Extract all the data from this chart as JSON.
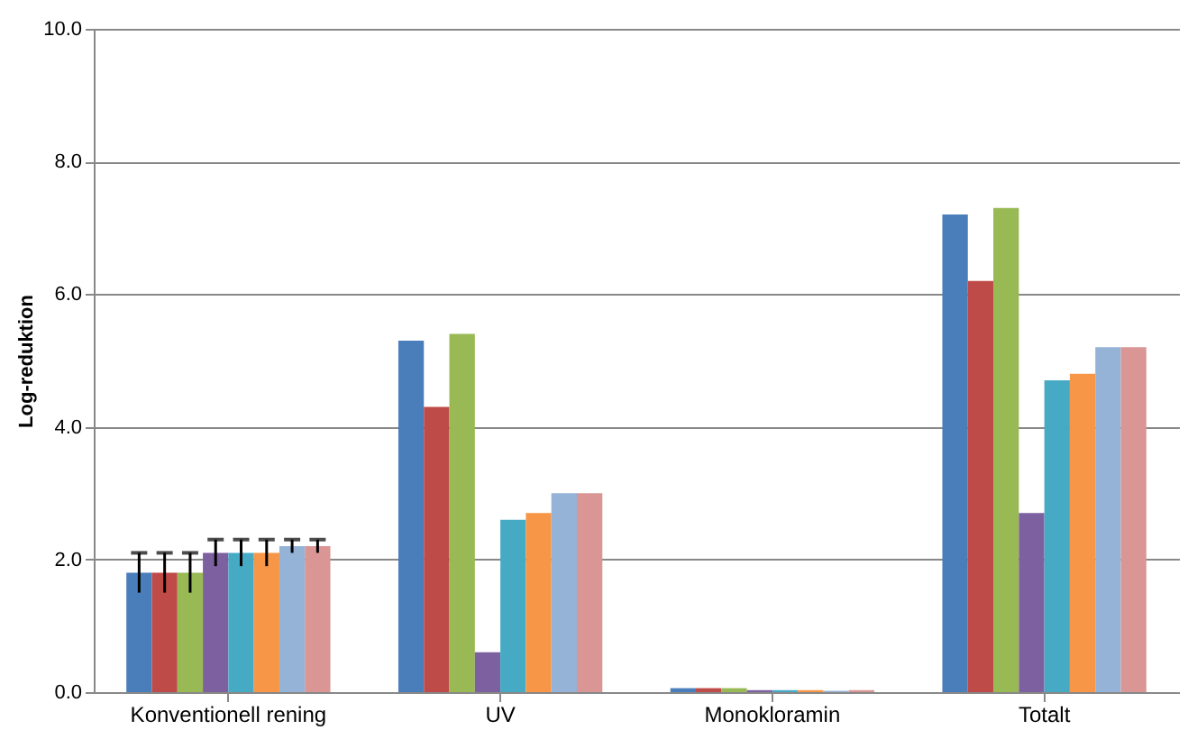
{
  "chart_data": {
    "type": "bar",
    "ylabel": "Log-reduktion",
    "categories": [
      "Konventionell rening",
      "UV",
      "Monokloramin",
      "Totalt"
    ],
    "series": [
      {
        "color": "#4a7ebb",
        "values": [
          1.8,
          5.3,
          0.06,
          7.2
        ],
        "errors": [
          0.3,
          null,
          null,
          null
        ]
      },
      {
        "color": "#be4b48",
        "values": [
          1.8,
          4.3,
          0.06,
          6.2
        ],
        "errors": [
          0.3,
          null,
          null,
          null
        ]
      },
      {
        "color": "#98b954",
        "values": [
          1.8,
          5.4,
          0.06,
          7.3
        ],
        "errors": [
          0.3,
          null,
          null,
          null
        ]
      },
      {
        "color": "#7d60a0",
        "values": [
          2.1,
          0.6,
          0.03,
          2.7
        ],
        "errors": [
          0.2,
          null,
          null,
          null
        ]
      },
      {
        "color": "#46aac5",
        "values": [
          2.1,
          2.6,
          0.03,
          4.7
        ],
        "errors": [
          0.2,
          null,
          null,
          null
        ]
      },
      {
        "color": "#f79646",
        "values": [
          2.1,
          2.7,
          0.03,
          4.8
        ],
        "errors": [
          0.2,
          null,
          null,
          null
        ]
      },
      {
        "color": "#95b3d7",
        "values": [
          2.2,
          3.0,
          0.02,
          5.2
        ],
        "errors": [
          0.1,
          null,
          null,
          null
        ]
      },
      {
        "color": "#d99694",
        "values": [
          2.2,
          3.0,
          0.03,
          5.2
        ],
        "errors": [
          0.1,
          null,
          null,
          null
        ]
      }
    ],
    "ylim": [
      0,
      10
    ],
    "yticks": [
      {
        "value": 0,
        "label": "0.0"
      },
      {
        "value": 2,
        "label": "2.0"
      },
      {
        "value": 4,
        "label": "4.0"
      },
      {
        "value": 6,
        "label": "6.0"
      },
      {
        "value": 8,
        "label": "8.0"
      },
      {
        "value": 10,
        "label": "10.0"
      }
    ],
    "grid": "y",
    "legend": false
  }
}
